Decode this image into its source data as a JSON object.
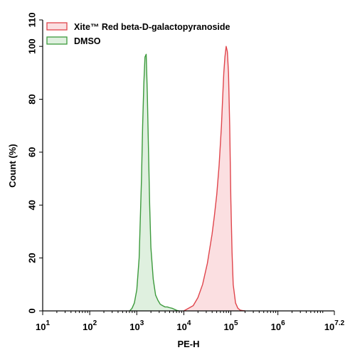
{
  "chart_data": {
    "type": "area",
    "x_scale": "log",
    "xlim": [
      10,
      15848931.92
    ],
    "ylim": [
      0,
      110
    ],
    "xlabel": "PE-H",
    "ylabel": "Count (%)",
    "xticks": [
      {
        "base": "10",
        "exp": "1",
        "value": 10
      },
      {
        "base": "10",
        "exp": "2",
        "value": 100
      },
      {
        "base": "10",
        "exp": "3",
        "value": 1000
      },
      {
        "base": "10",
        "exp": "4",
        "value": 10000
      },
      {
        "base": "10",
        "exp": "5",
        "value": 100000
      },
      {
        "base": "10",
        "exp": "6",
        "value": 1000000
      },
      {
        "base": "10",
        "exp": "7.2",
        "value": 15848931.92
      }
    ],
    "yticks": [
      0,
      20,
      40,
      60,
      80,
      100,
      110
    ],
    "grid": false,
    "legend_position": "top-left",
    "series": [
      {
        "name": "Xite™ Red beta-D-galactopyranoside",
        "stroke": "#e0454c",
        "fill": "#fbdfe1",
        "x": [
          10000,
          15849,
          19953,
          25119,
          31623,
          39811,
          44668,
          50119,
          56234,
          63096,
          66834,
          70795,
          74989,
          79433,
          84140,
          89125,
          94406,
          100000,
          105925,
          112202,
          125893,
          141254,
          158489,
          177828,
          199526
        ],
        "y": [
          0,
          2,
          5,
          10,
          18,
          29,
          36,
          44,
          55,
          70,
          80,
          90,
          96,
          100,
          98,
          90,
          70,
          42,
          22,
          10,
          3,
          1,
          0.3,
          0.1,
          0
        ]
      },
      {
        "name": "DMSO",
        "stroke": "#3c9a3c",
        "fill": "#dff0df",
        "x": [
          707,
          794,
          891,
          1000,
          1122,
          1259,
          1334,
          1413,
          1496,
          1585,
          1679,
          1778,
          1884,
          1995,
          2239,
          2512,
          2818,
          3162,
          3548,
          3981,
          4467,
          5012,
          5623,
          6310,
          7079,
          7943
        ],
        "y": [
          0,
          1,
          3,
          8,
          20,
          50,
          70,
          86,
          96,
          97,
          82,
          60,
          40,
          24,
          12,
          6,
          4,
          2.5,
          2,
          1.5,
          1.5,
          1.2,
          1,
          0.6,
          0.2,
          0
        ]
      }
    ]
  }
}
